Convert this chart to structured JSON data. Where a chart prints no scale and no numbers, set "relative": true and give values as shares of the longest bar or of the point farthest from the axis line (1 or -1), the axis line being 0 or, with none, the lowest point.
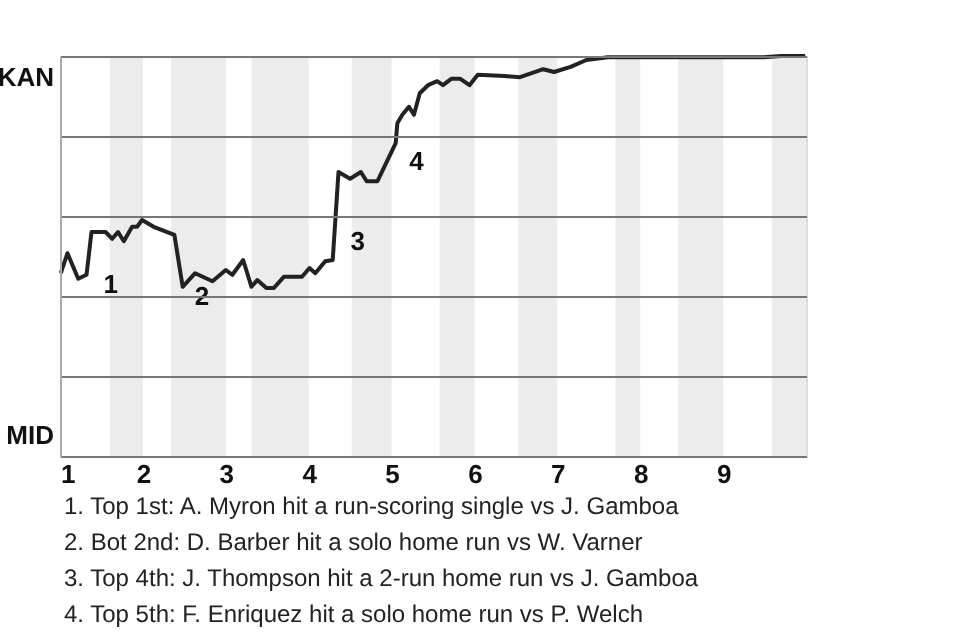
{
  "chart_data": {
    "type": "line",
    "relative": true,
    "x": [
      1.01,
      1.09,
      1.22,
      1.32,
      1.38,
      1.55,
      1.63,
      1.7,
      1.77,
      1.87,
      1.93,
      1.99,
      2.13,
      2.38,
      2.48,
      2.63,
      2.84,
      3.0,
      3.08,
      3.21,
      3.31,
      3.38,
      3.49,
      3.58,
      3.7,
      3.92,
      4.01,
      4.08,
      4.2,
      4.29,
      4.36,
      4.5,
      4.63,
      4.7,
      4.83,
      5.05,
      5.07,
      5.13,
      5.21,
      5.27,
      5.34,
      5.44,
      5.55,
      5.62,
      5.72,
      5.83,
      5.94,
      6.04,
      6.36,
      6.55,
      6.83,
      6.96,
      7.16,
      7.35,
      7.61,
      9.49,
      9.7,
      9.99
    ],
    "series": [
      {
        "color": "#222222",
        "values": [
          0.457,
          0.507,
          0.443,
          0.453,
          0.56,
          0.56,
          0.543,
          0.56,
          0.537,
          0.573,
          0.573,
          0.59,
          0.573,
          0.553,
          0.423,
          0.457,
          0.437,
          0.465,
          0.453,
          0.49,
          0.423,
          0.44,
          0.42,
          0.42,
          0.448,
          0.448,
          0.47,
          0.457,
          0.487,
          0.49,
          0.71,
          0.693,
          0.71,
          0.687,
          0.687,
          0.782,
          0.832,
          0.853,
          0.873,
          0.853,
          0.907,
          0.927,
          0.937,
          0.927,
          0.943,
          0.943,
          0.927,
          0.953,
          0.95,
          0.947,
          0.967,
          0.96,
          0.973,
          0.99,
          0.997,
          0.997,
          1,
          1
        ]
      }
    ],
    "xlim": [
      1,
      10
    ],
    "xticks": [
      1,
      2,
      3,
      4,
      5,
      6,
      7,
      8,
      9
    ],
    "grid": "y",
    "bands": [
      {
        "axis": "x",
        "from": 1.6,
        "to": 2,
        "color": "#ececec"
      },
      {
        "axis": "x",
        "from": 2.34,
        "to": 3,
        "color": "#ececec"
      },
      {
        "axis": "x",
        "from": 3.31,
        "to": 4,
        "color": "#ececec"
      },
      {
        "axis": "x",
        "from": 4.52,
        "to": 5,
        "color": "#ececec"
      },
      {
        "axis": "x",
        "from": 5.58,
        "to": 6,
        "color": "#ececec"
      },
      {
        "axis": "x",
        "from": 6.53,
        "to": 7,
        "color": "#ececec"
      },
      {
        "axis": "x",
        "from": 7.7,
        "to": 8,
        "color": "#ececec"
      },
      {
        "axis": "x",
        "from": 8.46,
        "to": 9,
        "color": "#ececec"
      },
      {
        "axis": "x",
        "from": 9.59,
        "to": 10,
        "color": "#ececec"
      }
    ],
    "annotations": [
      "KAN",
      "MID",
      {
        "text": "1",
        "x": 1.38,
        "y": 0.453
      },
      {
        "text": "2",
        "x": 2.48,
        "y": 0.423
      },
      {
        "text": "3",
        "x": 4.36,
        "y": 0.56
      },
      {
        "text": "4",
        "x": 5.07,
        "y": 0.76
      },
      "1. Top 1st: A. Myron hit a run-scoring single vs J. Gamboa",
      "2. Bot 2nd: D. Barber hit a solo home run vs W. Varner",
      "3. Top 4th: J. Thompson hit a 2-run home run vs J. Gamboa",
      "4. Top 5th: F. Enriquez hit a solo home run vs P. Welch"
    ]
  }
}
